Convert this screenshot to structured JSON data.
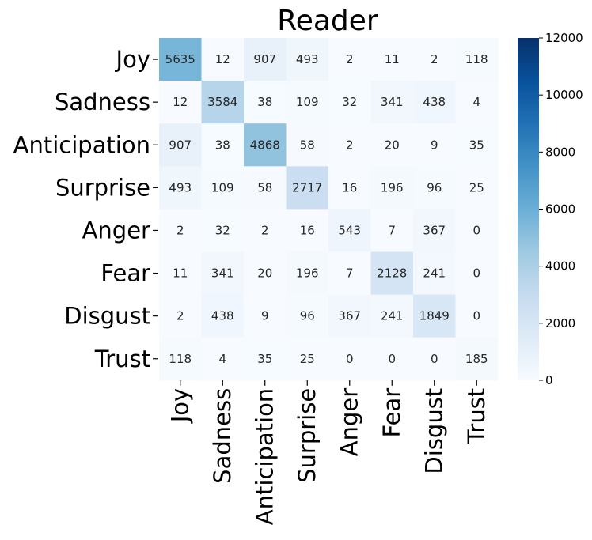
{
  "chart_data": {
    "type": "heatmap",
    "title": "Reader",
    "row_labels": [
      "Joy",
      "Sadness",
      "Anticipation",
      "Surprise",
      "Anger",
      "Fear",
      "Disgust",
      "Trust"
    ],
    "col_labels": [
      "Joy",
      "Sadness",
      "Anticipation",
      "Surprise",
      "Anger",
      "Fear",
      "Disgust",
      "Trust"
    ],
    "values": [
      [
        5635,
        12,
        907,
        493,
        2,
        11,
        2,
        118
      ],
      [
        12,
        3584,
        38,
        109,
        32,
        341,
        438,
        4
      ],
      [
        907,
        38,
        4868,
        58,
        2,
        20,
        9,
        35
      ],
      [
        493,
        109,
        58,
        2717,
        16,
        196,
        96,
        25
      ],
      [
        2,
        32,
        2,
        16,
        543,
        7,
        367,
        0
      ],
      [
        11,
        341,
        20,
        196,
        7,
        2128,
        241,
        0
      ],
      [
        2,
        438,
        9,
        96,
        367,
        241,
        1849,
        0
      ],
      [
        118,
        4,
        35,
        25,
        0,
        0,
        0,
        185
      ]
    ],
    "colorbar": {
      "min": 0,
      "max": 12000,
      "ticks": [
        "0",
        "2000",
        "4000",
        "6000",
        "8000",
        "10000",
        "12000"
      ],
      "colormap": "Blues"
    }
  }
}
